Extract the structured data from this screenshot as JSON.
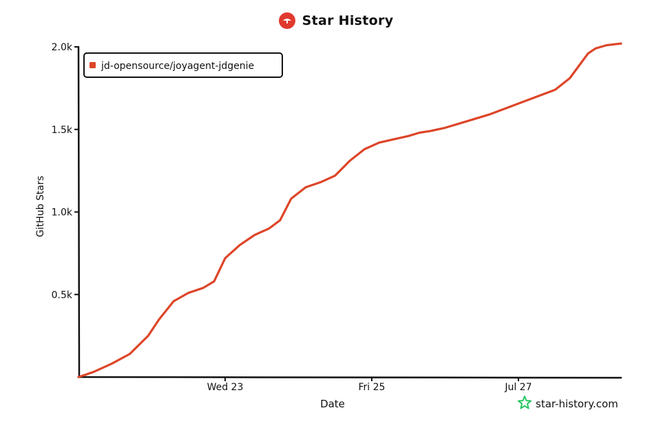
{
  "header": {
    "title": "Star History",
    "logo_icon": "repo-logo-icon"
  },
  "watermark": {
    "text": "star-history.com",
    "icon": "star-icon",
    "icon_color": "#22c55e"
  },
  "colors": {
    "series": "#dd4528",
    "axis": "#111111"
  },
  "chart_data": {
    "type": "line",
    "title": "Star History",
    "xlabel": "Date",
    "ylabel": "GitHub Stars",
    "x_ticks": [
      "Wed 23",
      "Fri 25",
      "Jul 27"
    ],
    "y_ticks": [
      "0.5k",
      "1.0k",
      "1.5k",
      "2.0k"
    ],
    "ylim": [
      0,
      2.0
    ],
    "xlim": [
      0,
      7.4
    ],
    "legend": {
      "placement": "top-left"
    },
    "grid": false,
    "series": [
      {
        "name": "jd-opensource/joyagent-jdgenie",
        "color": "#dd4528",
        "x": [
          0.0,
          0.2,
          0.45,
          0.7,
          0.95,
          1.1,
          1.3,
          1.5,
          1.7,
          1.85,
          2.0,
          2.2,
          2.4,
          2.6,
          2.75,
          2.9,
          3.1,
          3.3,
          3.5,
          3.7,
          3.9,
          4.1,
          4.3,
          4.5,
          4.65,
          4.8,
          5.0,
          5.3,
          5.6,
          5.9,
          6.2,
          6.5,
          6.7,
          6.85,
          6.95,
          7.05,
          7.2,
          7.4
        ],
        "y": [
          0.0,
          0.03,
          0.08,
          0.14,
          0.25,
          0.35,
          0.46,
          0.51,
          0.54,
          0.58,
          0.72,
          0.8,
          0.86,
          0.9,
          0.95,
          1.08,
          1.15,
          1.18,
          1.22,
          1.31,
          1.38,
          1.42,
          1.44,
          1.46,
          1.48,
          1.49,
          1.51,
          1.55,
          1.59,
          1.64,
          1.69,
          1.74,
          1.81,
          1.9,
          1.96,
          1.99,
          2.01,
          2.02
        ]
      }
    ]
  }
}
